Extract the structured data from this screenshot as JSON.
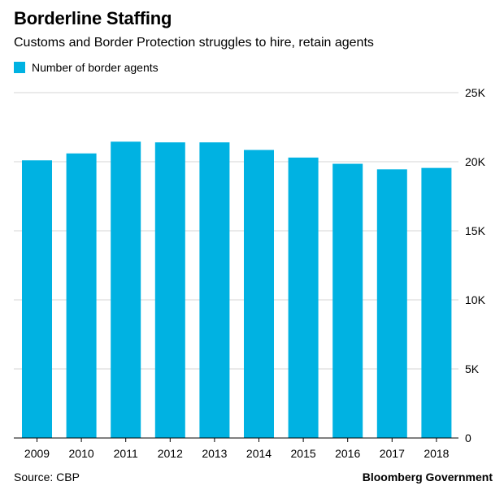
{
  "colors": {
    "bar": "#00b2e2",
    "grid": "#d6d6d6",
    "axis": "#000000"
  },
  "header": {
    "title": "Borderline Staffing",
    "subtitle": "Customs and Border Protection struggles to hire, retain agents"
  },
  "footer": {
    "source": "Source: CBP",
    "brand": "Bloomberg Government"
  },
  "chart_data": {
    "type": "bar",
    "title": "Borderline Staffing",
    "subtitle": "Customs and Border Protection struggles to hire, retain agents",
    "xlabel": "",
    "ylabel": "",
    "categories": [
      "2009",
      "2010",
      "2011",
      "2012",
      "2013",
      "2014",
      "2015",
      "2016",
      "2017",
      "2018"
    ],
    "series": [
      {
        "name": "Number of border agents",
        "values": [
          20100,
          20600,
          21450,
          21400,
          21400,
          20850,
          20300,
          19850,
          19450,
          19550
        ]
      }
    ],
    "ylim": [
      0,
      25000
    ],
    "yticks": [
      0,
      5000,
      10000,
      15000,
      20000,
      25000
    ],
    "ytick_labels": [
      "0",
      "5K",
      "10K",
      "15K",
      "20K",
      "25K"
    ],
    "grid": true,
    "legend_position": "top-left",
    "y_axis_side": "right"
  }
}
